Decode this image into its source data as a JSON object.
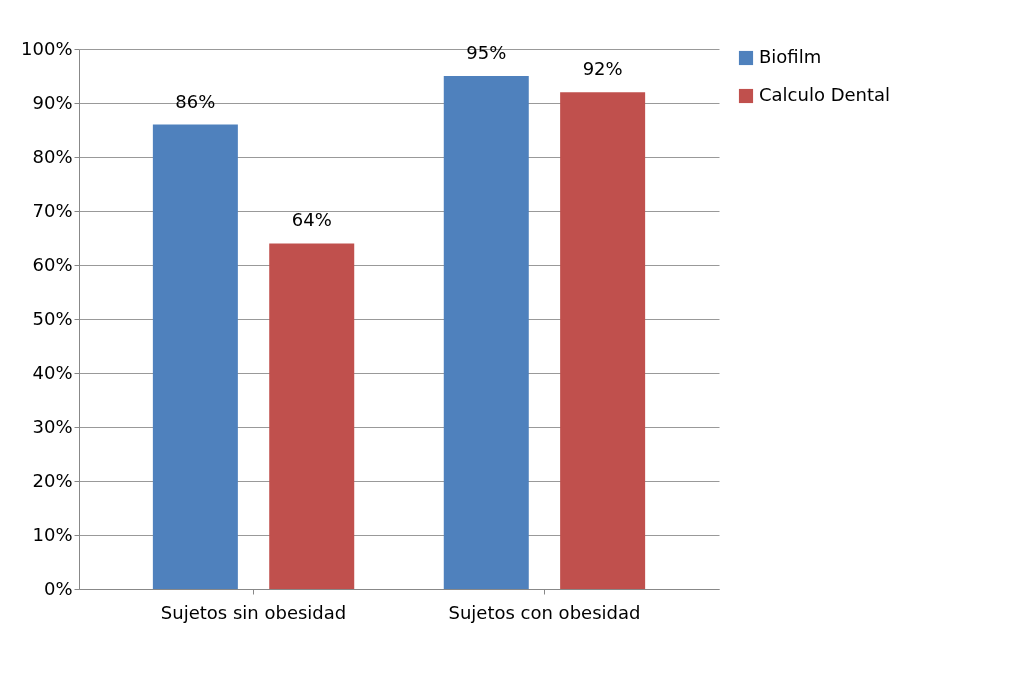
{
  "chart_data": {
    "type": "bar",
    "categories": [
      "Sujetos sin obesidad",
      "Sujetos con obesidad"
    ],
    "series": [
      {
        "name": "Biofilm",
        "color": "#4f81bd",
        "values": [
          86,
          95
        ],
        "value_labels": [
          "86%",
          "95%"
        ]
      },
      {
        "name": "Calculo Dental",
        "color": "#c0504d",
        "values": [
          64,
          92
        ],
        "value_labels": [
          "64%",
          "92%"
        ]
      }
    ],
    "ylim": [
      0,
      100
    ],
    "yticks": [
      {
        "value": 0,
        "label": "0%"
      },
      {
        "value": 10,
        "label": "10%"
      },
      {
        "value": 20,
        "label": "20%"
      },
      {
        "value": 30,
        "label": "30%"
      },
      {
        "value": 40,
        "label": "40%"
      },
      {
        "value": 50,
        "label": "50%"
      },
      {
        "value": 60,
        "label": "60%"
      },
      {
        "value": 70,
        "label": "70%"
      },
      {
        "value": 80,
        "label": "80%"
      },
      {
        "value": 90,
        "label": "90%"
      },
      {
        "value": 100,
        "label": "100%"
      }
    ],
    "grid": "y",
    "legend": "right"
  }
}
